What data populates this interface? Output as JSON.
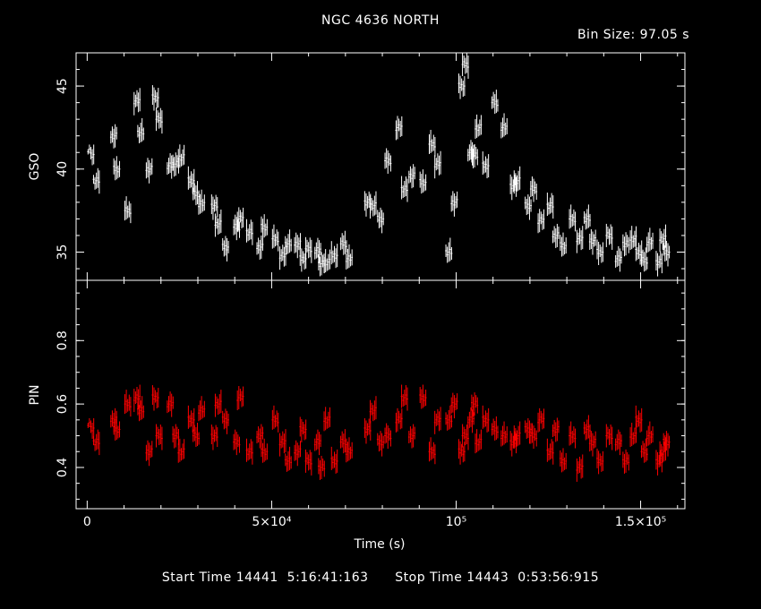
{
  "header": {
    "title": "NGC 4636 NORTH",
    "bin_size": "Bin Size: 97.05 s"
  },
  "footer": {
    "start_label": "Start Time 14441  5:16:41:163",
    "stop_label": "Stop Time 14443  0:53:56:915"
  },
  "colors": {
    "background": "#000000",
    "axes": "#ffffff",
    "gso_series": "#ffffff",
    "pin_series": "#ff0000"
  },
  "chart_data": [
    {
      "type": "scatter",
      "name": "GSO",
      "ylabel": "GSO",
      "xlabel": "Time (s)",
      "xlim": [
        -3000,
        162000
      ],
      "ylim": [
        33.3,
        47
      ],
      "yticks": [
        35,
        40,
        45
      ],
      "ytick_labels": [
        "35",
        "40",
        "45"
      ],
      "xticks": [
        0,
        50000,
        100000,
        150000
      ],
      "grid": false,
      "error_bars": true,
      "x": [
        1000,
        2500,
        7200,
        8000,
        11000,
        13500,
        14500,
        16800,
        18500,
        19500,
        22500,
        24000,
        25500,
        28200,
        29500,
        31000,
        34500,
        35500,
        37500,
        40500,
        41500,
        44000,
        46800,
        48000,
        51000,
        53000,
        54500,
        57000,
        58500,
        60000,
        62500,
        63500,
        65000,
        67000,
        69500,
        71000,
        76000,
        77500,
        79500,
        81500,
        84500,
        86000,
        88000,
        91000,
        93500,
        95000,
        98000,
        99500,
        101500,
        102500,
        104000,
        105000,
        106000,
        108000,
        110500,
        113000,
        115500,
        116500,
        119500,
        121000,
        123000,
        125500,
        127000,
        129000,
        131500,
        133500,
        135500,
        137000,
        139000,
        141500,
        144000,
        146000,
        148000,
        149500,
        151000,
        152500,
        155000,
        156000,
        157000
      ],
      "y": [
        40.8,
        39.3,
        42.0,
        40.0,
        37.5,
        44.1,
        42.2,
        40.0,
        44.3,
        43.0,
        40.2,
        40.3,
        40.7,
        39.3,
        38.5,
        37.9,
        37.8,
        36.7,
        35.3,
        36.5,
        37.0,
        36.2,
        35.3,
        36.5,
        35.8,
        34.8,
        35.5,
        35.5,
        34.6,
        35.2,
        35.1,
        34.3,
        34.4,
        34.8,
        35.5,
        34.6,
        38.0,
        37.8,
        37.0,
        40.5,
        42.5,
        38.8,
        39.6,
        39.2,
        41.5,
        40.3,
        35.0,
        38.0,
        45.0,
        46.3,
        41.0,
        40.8,
        42.5,
        40.2,
        44.0,
        42.5,
        39.0,
        39.3,
        37.8,
        38.8,
        36.9,
        37.8,
        36.0,
        35.4,
        37.0,
        35.8,
        37.0,
        35.7,
        35.0,
        36.0,
        34.6,
        35.5,
        35.8,
        35.0,
        34.5,
        35.6,
        34.4,
        35.8,
        35.0
      ]
    },
    {
      "type": "scatter",
      "name": "PIN",
      "ylabel": "PIN",
      "xlabel": "Time (s)",
      "xlim": [
        -3000,
        162000
      ],
      "ylim": [
        0.27,
        0.99
      ],
      "yticks": [
        0.4,
        0.6,
        0.8
      ],
      "ytick_labels": [
        "0.4",
        "0.6",
        "0.8"
      ],
      "xticks": [
        0,
        50000,
        100000,
        150000
      ],
      "xtick_labels": [
        "0",
        "5×10⁴",
        "10⁵",
        "1.5×10⁵"
      ],
      "grid": false,
      "error_bars": true,
      "x": [
        1000,
        2500,
        7200,
        8000,
        11000,
        13500,
        14500,
        16800,
        18500,
        19500,
        22500,
        24000,
        25500,
        28200,
        29500,
        31000,
        34500,
        35500,
        37500,
        40500,
        41500,
        44000,
        46800,
        48000,
        51000,
        53000,
        54500,
        57000,
        58500,
        60000,
        62500,
        63500,
        65000,
        67000,
        69500,
        71000,
        76000,
        77500,
        79500,
        81500,
        84500,
        86000,
        88000,
        91000,
        93500,
        95000,
        98000,
        99500,
        101500,
        102500,
        104000,
        105000,
        106000,
        108000,
        110500,
        113000,
        115500,
        116500,
        119500,
        121000,
        123000,
        125500,
        127000,
        129000,
        131500,
        133500,
        135500,
        137000,
        139000,
        141500,
        144000,
        146000,
        148000,
        149500,
        151000,
        152500,
        155000,
        156000,
        157000
      ],
      "y": [
        0.52,
        0.48,
        0.55,
        0.52,
        0.6,
        0.62,
        0.58,
        0.45,
        0.62,
        0.5,
        0.6,
        0.5,
        0.45,
        0.55,
        0.5,
        0.58,
        0.5,
        0.6,
        0.55,
        0.48,
        0.62,
        0.45,
        0.5,
        0.45,
        0.55,
        0.48,
        0.42,
        0.45,
        0.52,
        0.42,
        0.48,
        0.4,
        0.55,
        0.42,
        0.48,
        0.45,
        0.52,
        0.58,
        0.48,
        0.5,
        0.55,
        0.62,
        0.5,
        0.62,
        0.45,
        0.55,
        0.55,
        0.6,
        0.45,
        0.5,
        0.55,
        0.6,
        0.48,
        0.55,
        0.52,
        0.5,
        0.48,
        0.5,
        0.52,
        0.5,
        0.55,
        0.45,
        0.52,
        0.42,
        0.5,
        0.4,
        0.52,
        0.48,
        0.42,
        0.5,
        0.48,
        0.42,
        0.5,
        0.55,
        0.45,
        0.5,
        0.42,
        0.45,
        0.48
      ]
    }
  ]
}
